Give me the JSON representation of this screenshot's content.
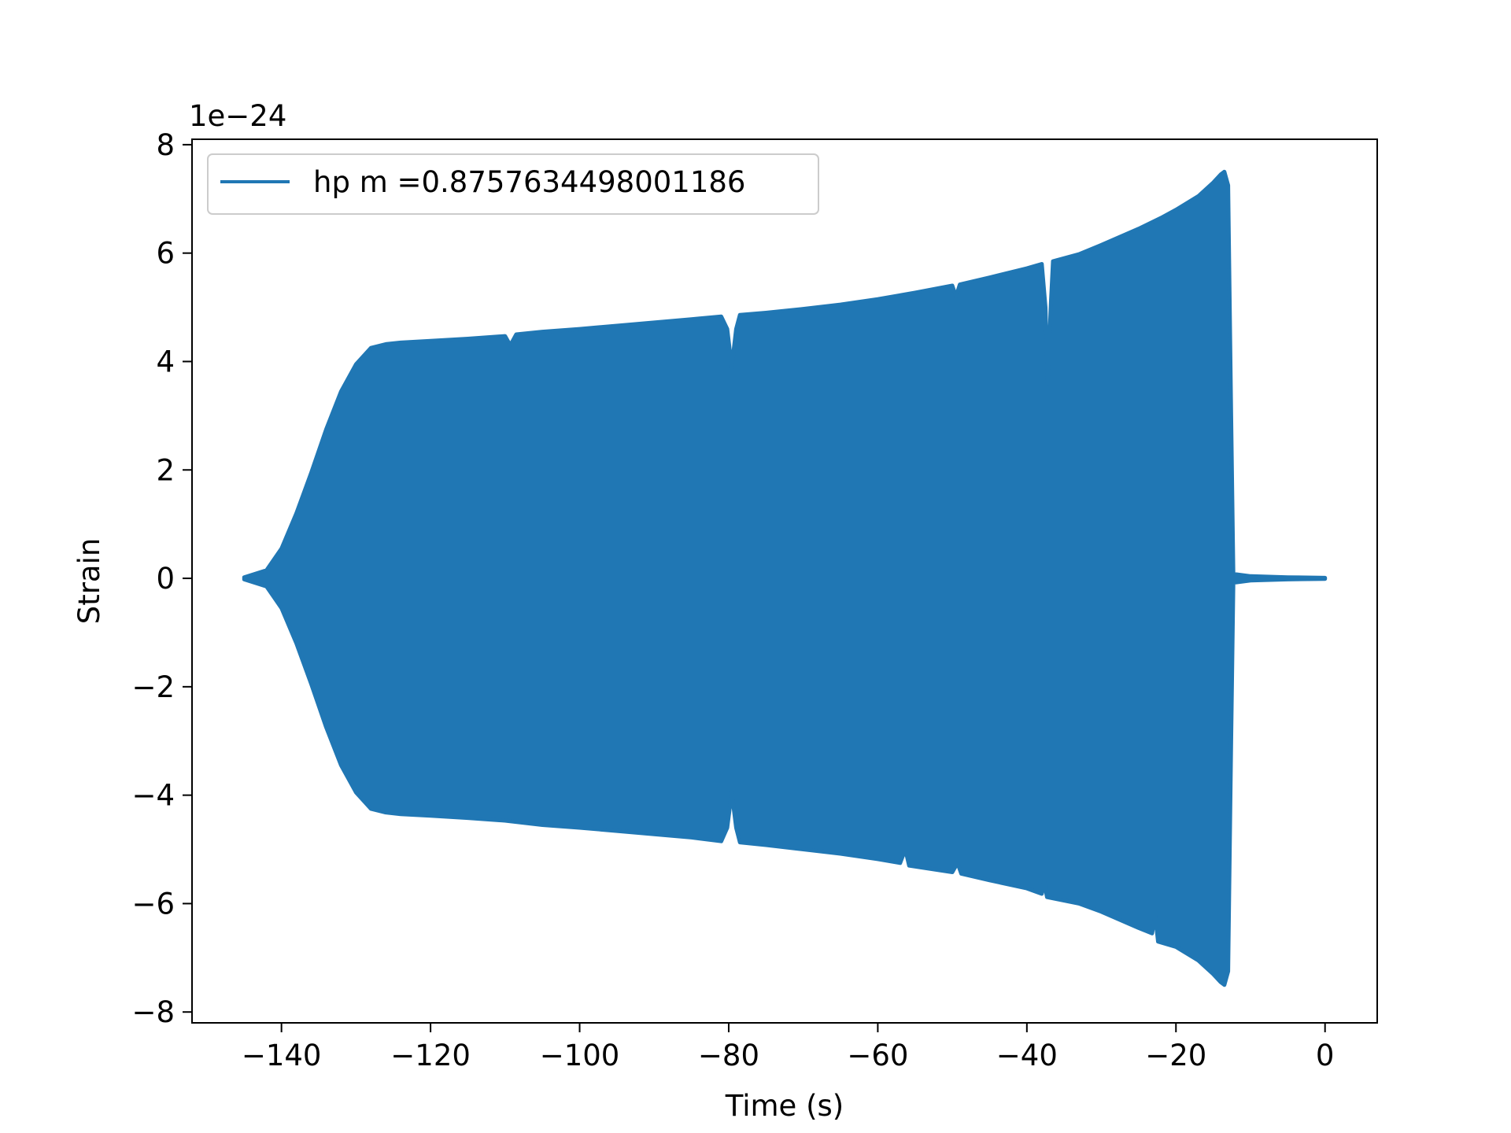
{
  "chart_data": {
    "type": "area",
    "title": "",
    "xlabel": "Time (s)",
    "ylabel": "Strain",
    "y_offset_label": "1e−24",
    "y_scale": 1e-24,
    "xlim": [
      -152,
      7
    ],
    "ylim": [
      -8.2,
      8.1
    ],
    "x_ticks": [
      -140,
      -120,
      -100,
      -80,
      -60,
      -40,
      -20,
      0
    ],
    "x_tick_labels": [
      "−140",
      "−120",
      "−100",
      "−80",
      "−60",
      "−40",
      "−20",
      "0"
    ],
    "y_ticks": [
      8,
      6,
      4,
      2,
      0,
      -2,
      -4,
      -6,
      -8
    ],
    "y_tick_labels": [
      "8",
      "6",
      "4",
      "2",
      "0",
      "−2",
      "−4",
      "−6",
      "−8"
    ],
    "grid": false,
    "legend_position": "top-left",
    "color": "#2077b4",
    "series": [
      {
        "name": "hp m =0.8757634498001186",
        "envelope_upper": [
          [
            -145,
            0.02
          ],
          [
            -142,
            0.15
          ],
          [
            -140,
            0.55
          ],
          [
            -138,
            1.2
          ],
          [
            -136,
            1.95
          ],
          [
            -134,
            2.75
          ],
          [
            -132,
            3.45
          ],
          [
            -130,
            3.95
          ],
          [
            -128,
            4.25
          ],
          [
            -126,
            4.32
          ],
          [
            -124,
            4.35
          ],
          [
            -120,
            4.38
          ],
          [
            -115,
            4.42
          ],
          [
            -110,
            4.47
          ],
          [
            -109.3,
            4.3
          ],
          [
            -108.5,
            4.5
          ],
          [
            -105,
            4.55
          ],
          [
            -100,
            4.6
          ],
          [
            -95,
            4.66
          ],
          [
            -90,
            4.72
          ],
          [
            -85,
            4.78
          ],
          [
            -81,
            4.83
          ],
          [
            -80.2,
            4.6
          ],
          [
            -79.6,
            3.9
          ],
          [
            -79,
            4.6
          ],
          [
            -78.5,
            4.86
          ],
          [
            -75,
            4.9
          ],
          [
            -70,
            4.97
          ],
          [
            -65,
            5.05
          ],
          [
            -60,
            5.15
          ],
          [
            -55,
            5.27
          ],
          [
            -50,
            5.4
          ],
          [
            -49.5,
            5.2
          ],
          [
            -49,
            5.42
          ],
          [
            -45,
            5.55
          ],
          [
            -40,
            5.72
          ],
          [
            -38,
            5.8
          ],
          [
            -37.5,
            5.0
          ],
          [
            -37.2,
            3.6
          ],
          [
            -36.8,
            5.0
          ],
          [
            -36.5,
            5.85
          ],
          [
            -33,
            5.98
          ],
          [
            -30,
            6.15
          ],
          [
            -25,
            6.45
          ],
          [
            -22,
            6.65
          ],
          [
            -20,
            6.8
          ],
          [
            -17,
            7.05
          ],
          [
            -15,
            7.3
          ],
          [
            -14,
            7.45
          ],
          [
            -13.5,
            7.5
          ],
          [
            -13,
            7.25
          ],
          [
            -12.6,
            3.0
          ],
          [
            -12.3,
            0.08
          ],
          [
            -10,
            0.04
          ],
          [
            -5,
            0.02
          ],
          [
            0,
            0.01
          ]
        ],
        "envelope_lower": [
          [
            -145,
            -0.02
          ],
          [
            -142,
            -0.15
          ],
          [
            -140,
            -0.55
          ],
          [
            -138,
            -1.2
          ],
          [
            -136,
            -1.95
          ],
          [
            -134,
            -2.75
          ],
          [
            -132,
            -3.45
          ],
          [
            -130,
            -3.95
          ],
          [
            -128,
            -4.25
          ],
          [
            -126,
            -4.32
          ],
          [
            -124,
            -4.35
          ],
          [
            -120,
            -4.38
          ],
          [
            -115,
            -4.42
          ],
          [
            -110,
            -4.47
          ],
          [
            -105,
            -4.55
          ],
          [
            -100,
            -4.6
          ],
          [
            -95,
            -4.66
          ],
          [
            -90,
            -4.72
          ],
          [
            -85,
            -4.78
          ],
          [
            -81,
            -4.85
          ],
          [
            -80.2,
            -4.6
          ],
          [
            -79.6,
            -3.95
          ],
          [
            -79,
            -4.6
          ],
          [
            -78.5,
            -4.87
          ],
          [
            -75,
            -4.92
          ],
          [
            -70,
            -5.0
          ],
          [
            -65,
            -5.08
          ],
          [
            -60,
            -5.18
          ],
          [
            -57,
            -5.25
          ],
          [
            -56.3,
            -5.0
          ],
          [
            -55.8,
            -5.3
          ],
          [
            -50,
            -5.42
          ],
          [
            -49.3,
            -5.25
          ],
          [
            -48.8,
            -5.45
          ],
          [
            -45,
            -5.57
          ],
          [
            -40,
            -5.72
          ],
          [
            -38,
            -5.82
          ],
          [
            -37.7,
            -5.6
          ],
          [
            -37.3,
            -5.88
          ],
          [
            -33,
            -6.0
          ],
          [
            -30,
            -6.15
          ],
          [
            -25,
            -6.45
          ],
          [
            -23.2,
            -6.55
          ],
          [
            -22.8,
            -6.2
          ],
          [
            -22.4,
            -6.7
          ],
          [
            -20,
            -6.8
          ],
          [
            -17,
            -7.05
          ],
          [
            -15,
            -7.3
          ],
          [
            -14,
            -7.45
          ],
          [
            -13.5,
            -7.5
          ],
          [
            -13,
            -7.25
          ],
          [
            -12.6,
            -3.0
          ],
          [
            -12.3,
            -0.08
          ],
          [
            -10,
            -0.04
          ],
          [
            -5,
            -0.02
          ],
          [
            0,
            -0.01
          ]
        ]
      }
    ]
  }
}
